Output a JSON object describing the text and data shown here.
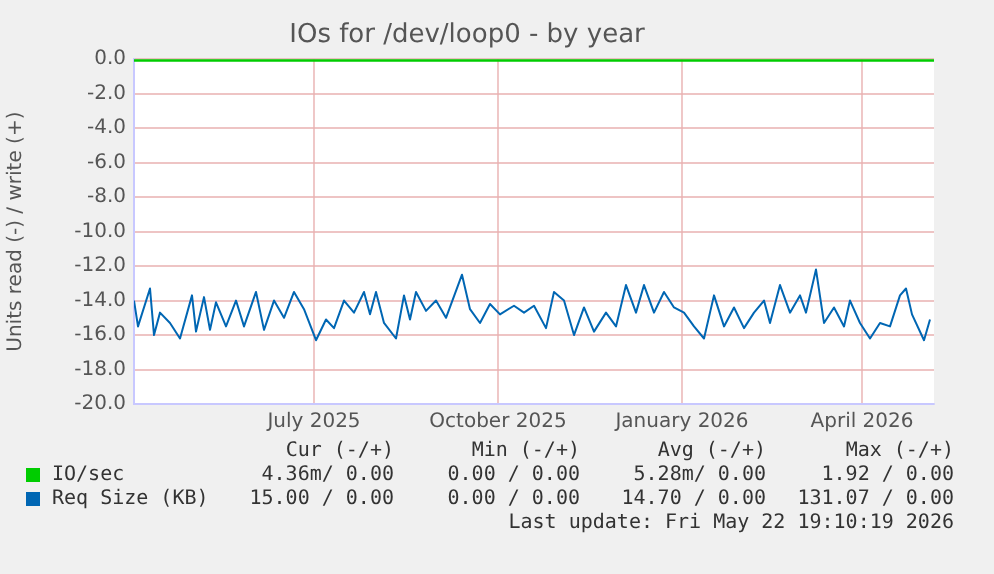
{
  "chart_data": {
    "type": "line",
    "title": "IOs for /dev/loop0 - by year",
    "ylabel": "Units read (-) / write (+)",
    "xlim": [
      "2025-04-16",
      "2026-05-21"
    ],
    "xticks": [
      {
        "value": "2025-07-15",
        "label": "July 2025"
      },
      {
        "value": "2025-10-15",
        "label": "October 2025"
      },
      {
        "value": "2026-01-15",
        "label": "January 2026"
      },
      {
        "value": "2026-04-15",
        "label": "April 2026"
      }
    ],
    "ylim": [
      -20,
      0
    ],
    "yticks": [
      {
        "value": 0,
        "label": "0.0"
      },
      {
        "value": -2,
        "label": "-2.0"
      },
      {
        "value": -4,
        "label": "-4.0"
      },
      {
        "value": -6,
        "label": "-6.0"
      },
      {
        "value": -8,
        "label": "-8.0"
      },
      {
        "value": -10,
        "label": "-10.0"
      },
      {
        "value": -12,
        "label": "-12.0"
      },
      {
        "value": -14,
        "label": "-14.0"
      },
      {
        "value": -16,
        "label": "-16.0"
      },
      {
        "value": -18,
        "label": "-18.0"
      },
      {
        "value": -20,
        "label": "-20.0"
      }
    ],
    "grid": true,
    "legend": "bottom left",
    "marker": "none",
    "line_style": "solid",
    "series": [
      {
        "name": "IO/sec",
        "color": "#00cc00",
        "x": [
          "2025-04-16",
          "2026-05-21"
        ],
        "values": [
          0,
          0
        ]
      },
      {
        "name": "Req Size (KB)",
        "color": "#0066b3",
        "x": [
          "2025-04-16",
          "2025-04-18",
          "2025-04-24",
          "2025-04-26",
          "2025-04-29",
          "2025-05-04",
          "2025-05-09",
          "2025-05-15",
          "2025-05-17",
          "2025-05-21",
          "2025-05-24",
          "2025-05-27",
          "2025-06-01",
          "2025-06-06",
          "2025-06-10",
          "2025-06-16",
          "2025-06-20",
          "2025-06-25",
          "2025-06-30",
          "2025-07-05",
          "2025-07-10",
          "2025-07-16",
          "2025-07-21",
          "2025-07-25",
          "2025-07-30",
          "2025-08-04",
          "2025-08-09",
          "2025-08-12",
          "2025-08-15",
          "2025-08-19",
          "2025-08-25",
          "2025-08-29",
          "2025-09-01",
          "2025-09-04",
          "2025-09-09",
          "2025-09-14",
          "2025-09-19",
          "2025-09-27",
          "2025-10-01",
          "2025-10-06",
          "2025-10-11",
          "2025-10-16",
          "2025-10-23",
          "2025-10-28",
          "2025-11-02",
          "2025-11-08",
          "2025-11-12",
          "2025-11-17",
          "2025-11-22",
          "2025-11-27",
          "2025-12-02",
          "2025-12-08",
          "2025-12-13",
          "2025-12-18",
          "2025-12-23",
          "2025-12-27",
          "2026-01-01",
          "2026-01-06",
          "2026-01-11",
          "2026-01-16",
          "2026-01-21",
          "2026-01-26",
          "2026-01-31",
          "2026-02-05",
          "2026-02-10",
          "2026-02-15",
          "2026-02-20",
          "2026-02-25",
          "2026-02-28",
          "2026-03-05",
          "2026-03-10",
          "2026-03-15",
          "2026-03-18",
          "2026-03-23",
          "2026-03-27",
          "2026-04-01",
          "2026-04-06",
          "2026-04-09",
          "2026-04-14",
          "2026-04-19",
          "2026-04-24",
          "2026-04-29",
          "2026-05-04",
          "2026-05-07",
          "2026-05-10",
          "2026-05-16",
          "2026-05-19"
        ],
        "values": [
          -14,
          -15.5,
          -13.3,
          -16,
          -14.7,
          -15.3,
          -16.2,
          -13.7,
          -15.8,
          -13.8,
          -15.7,
          -14.1,
          -15.5,
          -14,
          -15.5,
          -13.5,
          -15.7,
          -14,
          -15,
          -13.5,
          -14.5,
          -16.3,
          -15.1,
          -15.6,
          -14,
          -14.7,
          -13.5,
          -14.8,
          -13.5,
          -15.3,
          -16.2,
          -13.7,
          -15.1,
          -13.5,
          -14.6,
          -14,
          -15,
          -12.5,
          -14.5,
          -15.3,
          -14.2,
          -14.8,
          -14.3,
          -14.7,
          -14.3,
          -15.6,
          -13.5,
          -14,
          -16,
          -14.4,
          -15.8,
          -14.7,
          -15.5,
          -13.1,
          -14.7,
          -13.1,
          -14.7,
          -13.5,
          -14.4,
          -14.7,
          -15.5,
          -16.2,
          -13.7,
          -15.5,
          -14.4,
          -15.6,
          -14.7,
          -14,
          -15.3,
          -13.1,
          -14.7,
          -13.7,
          -14.7,
          -12.2,
          -15.3,
          -14.4,
          -15.5,
          -14,
          -15.3,
          -16.2,
          -15.3,
          -15.5,
          -13.7,
          -13.3,
          -14.8,
          -16.3,
          -15.1
        ]
      }
    ],
    "annotations": [
      "Cur (-/+)",
      "Min (-/+)",
      "Avg (-/+)",
      "Max (-/+)",
      "4.36m/ 0.00",
      "0.00 / 0.00",
      "5.28m/ 0.00",
      "1.92 / 0.00",
      "15.00 / 0.00",
      "0.00 / 0.00",
      "14.70 / 0.00",
      "131.07 / 0.00",
      "Last update: Fri May 22 19:10:19 2026"
    ]
  }
}
